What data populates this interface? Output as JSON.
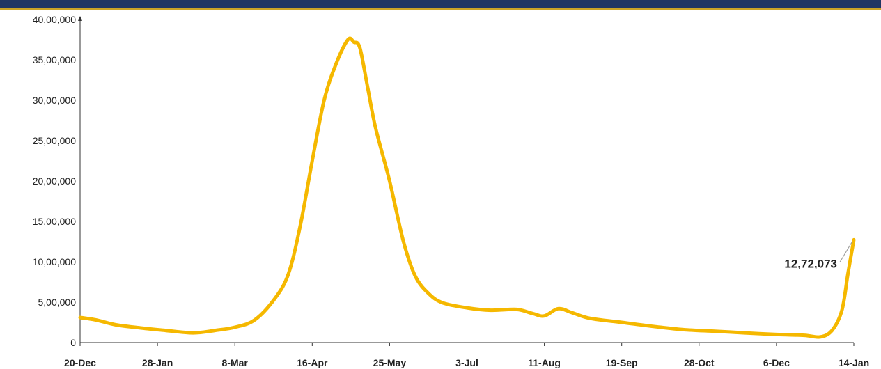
{
  "chart_data": {
    "type": "line",
    "title": "",
    "xlabel": "",
    "ylabel": "",
    "ylim": [
      0,
      4000000
    ],
    "y_ticks": [
      0,
      500000,
      1000000,
      1500000,
      2000000,
      2500000,
      3000000,
      3500000,
      4000000
    ],
    "y_tick_labels": [
      "0",
      "5,00,000",
      "10,00,000",
      "15,00,000",
      "20,00,000",
      "25,00,000",
      "30,00,000",
      "35,00,000",
      "40,00,000"
    ],
    "x_tick_labels": [
      "20-Dec",
      "28-Jan",
      "8-Mar",
      "16-Apr",
      "25-May",
      "3-Jul",
      "11-Aug",
      "19-Sep",
      "28-Oct",
      "6-Dec",
      "14-Jan"
    ],
    "x_range": [
      "2020-12-20",
      "2022-01-14"
    ],
    "grid": false,
    "line_color": "#f5b800",
    "series": [
      {
        "x": [
          "2020-12-20",
          "2020-12-28",
          "2021-01-07",
          "2021-01-20",
          "2021-02-01",
          "2021-02-15",
          "2021-02-26",
          "2021-03-08",
          "2021-03-18",
          "2021-03-28",
          "2021-04-04",
          "2021-04-10",
          "2021-04-16",
          "2021-04-22",
          "2021-04-28",
          "2021-05-04",
          "2021-05-07",
          "2021-05-10",
          "2021-05-14",
          "2021-05-18",
          "2021-05-25",
          "2021-06-01",
          "2021-06-07",
          "2021-06-14",
          "2021-06-21",
          "2021-07-03",
          "2021-07-15",
          "2021-07-28",
          "2021-08-05",
          "2021-08-11",
          "2021-08-18",
          "2021-08-25",
          "2021-09-03",
          "2021-09-19",
          "2021-10-05",
          "2021-10-20",
          "2021-11-05",
          "2021-11-20",
          "2021-12-06",
          "2021-12-20",
          "2021-12-28",
          "2022-01-03",
          "2022-01-08",
          "2022-01-11",
          "2022-01-14"
        ],
        "y": [
          310000,
          280000,
          220000,
          180000,
          150000,
          120000,
          150000,
          190000,
          280000,
          540000,
          850000,
          1450000,
          2250000,
          3000000,
          3450000,
          3750000,
          3720000,
          3650000,
          3150000,
          2650000,
          2000000,
          1250000,
          820000,
          600000,
          490000,
          430000,
          400000,
          410000,
          360000,
          330000,
          420000,
          370000,
          300000,
          250000,
          200000,
          160000,
          140000,
          120000,
          100000,
          90000,
          70000,
          150000,
          400000,
          850000,
          1272073
        ]
      }
    ],
    "annotations": [
      {
        "text": "12,72,073",
        "x": "2022-01-14",
        "y": 1272073
      }
    ]
  }
}
